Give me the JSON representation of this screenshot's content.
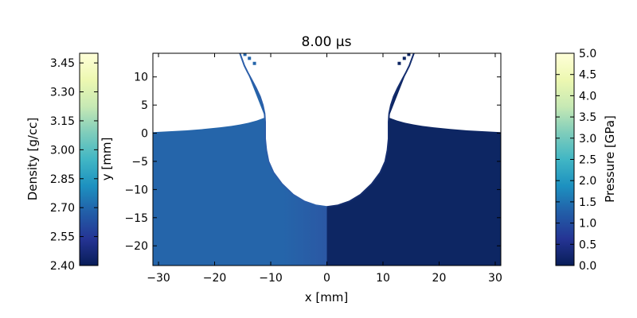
{
  "chart_data": {
    "type": "heatmap",
    "title": "8.00 μs",
    "xlabel": "x [mm]",
    "ylabel": "y [mm]",
    "xlim": [
      -31,
      31
    ],
    "ylim": [
      -23.5,
      14.2
    ],
    "x_ticks": [
      -30,
      -20,
      -10,
      0,
      10,
      20,
      30
    ],
    "x_tick_labels": [
      "−30",
      "−20",
      "−10",
      "0",
      "10",
      "20",
      "30"
    ],
    "y_ticks": [
      10,
      5,
      0,
      -5,
      -10,
      -15,
      -20
    ],
    "y_tick_labels": [
      "10",
      "5",
      "0",
      "−5",
      "−10",
      "−15",
      "−20"
    ],
    "grid": false,
    "left_half": {
      "field": "density",
      "value_g_cc": 2.7,
      "color": "#2565aa",
      "edge_color": "#2b5ea9"
    },
    "right_half": {
      "field": "pressure",
      "value_GPa": 0.1,
      "color": "#0d2663",
      "edge_color": "#142d6e"
    },
    "crater_profile": {
      "x_mm": [
        0,
        2,
        4,
        6,
        8,
        9.5,
        10.4,
        10.8,
        11,
        11,
        11,
        11.1,
        11.4,
        11.9,
        12.6,
        13.4,
        14.1,
        14.7,
        15.5
      ],
      "y_mm": [
        -13.1,
        -12.8,
        -12.1,
        -10.9,
        -9.0,
        -7.0,
        -5.0,
        -3.0,
        -1.0,
        0.5,
        2.0,
        3.5,
        5.0,
        6.5,
        8.0,
        9.5,
        10.8,
        12.0,
        14.2
      ]
    },
    "surface_profile": {
      "x_mm": [
        31,
        28,
        25,
        22,
        19,
        17,
        15.5,
        14,
        12.5,
        11
      ],
      "y_mm": [
        0.2,
        0.35,
        0.5,
        0.75,
        1.05,
        1.3,
        1.55,
        1.85,
        2.25,
        2.8
      ]
    },
    "ejecta_dots": [
      {
        "x_mm": 14.6,
        "y_mm": 14.0
      },
      {
        "x_mm": 13.8,
        "y_mm": 13.3
      },
      {
        "x_mm": 12.9,
        "y_mm": 12.4
      }
    ],
    "colorbar_left": {
      "label": "Density [g/cc]",
      "range": [
        2.4,
        3.5
      ],
      "ticks": [
        2.4,
        2.55,
        2.7,
        2.85,
        3.0,
        3.15,
        3.3,
        3.45
      ],
      "tick_labels": [
        "2.40",
        "2.55",
        "2.70",
        "2.85",
        "3.00",
        "3.15",
        "3.30",
        "3.45"
      ],
      "colormap": "YlGnBu_r"
    },
    "colorbar_right": {
      "label": "Pressure [GPa]",
      "range": [
        0.0,
        5.0
      ],
      "ticks": [
        0.0,
        0.5,
        1.0,
        1.5,
        2.0,
        2.5,
        3.0,
        3.5,
        4.0,
        4.5,
        5.0
      ],
      "tick_labels": [
        "0.0",
        "0.5",
        "1.0",
        "1.5",
        "2.0",
        "2.5",
        "3.0",
        "3.5",
        "4.0",
        "4.5",
        "5.0"
      ],
      "colormap": "YlGnBu_r"
    },
    "colormap_stops": [
      "#081d58",
      "#253494",
      "#225ea8",
      "#1d91c0",
      "#41b6c4",
      "#7fcdbb",
      "#c7e9b4",
      "#edf8b1",
      "#ffffd9"
    ]
  }
}
